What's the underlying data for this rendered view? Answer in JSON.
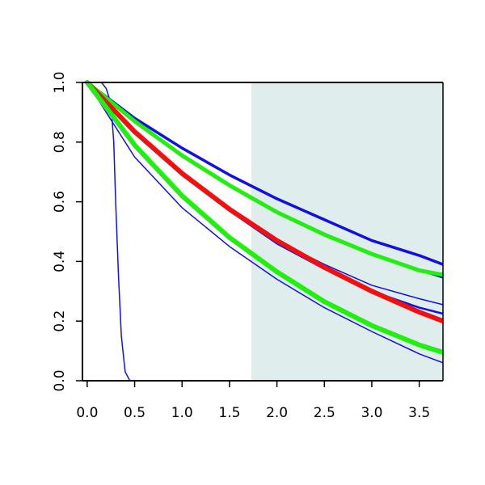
{
  "chart_data": {
    "type": "line",
    "title": "",
    "xlabel": "",
    "ylabel": "",
    "xlim": [
      -0.05,
      3.75
    ],
    "ylim": [
      0.0,
      1.0
    ],
    "x_ticks": [
      0.0,
      0.5,
      1.0,
      1.5,
      2.0,
      2.5,
      3.0,
      3.5
    ],
    "x_tick_labels": [
      "0.0",
      "0.5",
      "1.0",
      "1.5",
      "2.0",
      "2.5",
      "3.0",
      "3.5"
    ],
    "y_ticks": [
      0.0,
      0.2,
      0.4,
      0.6,
      0.8,
      1.0
    ],
    "y_tick_labels": [
      "0.0",
      "0.2",
      "0.4",
      "0.6",
      "0.8",
      "1.0"
    ],
    "grid": false,
    "shaded_region": {
      "x_start": 1.73,
      "x_end": 3.75,
      "color": "#e0eded"
    },
    "series": [
      {
        "color": "#1010e0",
        "width": 1.5,
        "x": [
          0,
          0.15,
          0.2,
          0.25,
          0.28,
          0.3,
          0.33,
          0.36,
          0.4,
          0.45,
          0.5,
          1.0,
          2.0,
          3.0,
          3.75
        ],
        "values": [
          1.0,
          1.0,
          0.98,
          0.93,
          0.8,
          0.6,
          0.35,
          0.15,
          0.03,
          0.0,
          0.0,
          0.0,
          0.0,
          0.0,
          0.0
        ]
      },
      {
        "color": "#1010e0",
        "width": 3.5,
        "x": [
          0,
          0.5,
          1.0,
          1.5,
          2.0,
          2.5,
          3.0,
          3.5,
          3.75
        ],
        "values": [
          1.0,
          0.88,
          0.78,
          0.69,
          0.61,
          0.54,
          0.47,
          0.42,
          0.39
        ]
      },
      {
        "color": "#1010e0",
        "width": 2.0,
        "x": [
          0,
          0.5,
          1.0,
          1.5,
          2.0,
          2.5,
          3.0,
          3.5,
          3.75
        ],
        "values": [
          1.0,
          0.87,
          0.755,
          0.655,
          0.565,
          0.49,
          0.425,
          0.37,
          0.345
        ]
      },
      {
        "color": "#1010e0",
        "width": 1.5,
        "x": [
          0,
          0.5,
          1.0,
          1.5,
          2.0,
          2.5,
          3.0,
          3.5,
          3.75
        ],
        "values": [
          1.0,
          0.84,
          0.69,
          0.57,
          0.47,
          0.39,
          0.32,
          0.275,
          0.255
        ]
      },
      {
        "color": "#1010e0",
        "width": 2.5,
        "x": [
          0,
          0.5,
          1.0,
          1.5,
          2.0,
          2.5,
          3.0,
          3.5,
          3.75
        ],
        "values": [
          1.0,
          0.84,
          0.69,
          0.57,
          0.46,
          0.375,
          0.3,
          0.245,
          0.225
        ]
      },
      {
        "color": "#1010e0",
        "width": 1.5,
        "x": [
          0,
          0.5,
          1.0,
          1.5,
          2.0,
          2.5,
          3.0,
          3.5,
          3.75
        ],
        "values": [
          1.0,
          0.75,
          0.58,
          0.45,
          0.34,
          0.245,
          0.165,
          0.09,
          0.06
        ]
      },
      {
        "color": "#22ee11",
        "width": 5.0,
        "x": [
          0,
          0.5,
          1.0,
          1.5,
          2.0,
          2.5,
          3.0,
          3.5,
          3.75
        ],
        "values": [
          1.0,
          0.87,
          0.755,
          0.655,
          0.565,
          0.49,
          0.425,
          0.37,
          0.355
        ]
      },
      {
        "color": "#ee1111",
        "width": 6.0,
        "x": [
          0,
          0.5,
          1.0,
          1.5,
          2.0,
          2.5,
          3.0,
          3.5,
          3.75
        ],
        "values": [
          1.0,
          0.835,
          0.695,
          0.575,
          0.47,
          0.38,
          0.3,
          0.23,
          0.2
        ]
      },
      {
        "color": "#22ee11",
        "width": 6.0,
        "x": [
          0,
          0.5,
          1.0,
          1.5,
          2.0,
          2.5,
          3.0,
          3.5,
          3.75
        ],
        "values": [
          1.0,
          0.79,
          0.62,
          0.48,
          0.365,
          0.265,
          0.185,
          0.12,
          0.095
        ]
      }
    ]
  }
}
